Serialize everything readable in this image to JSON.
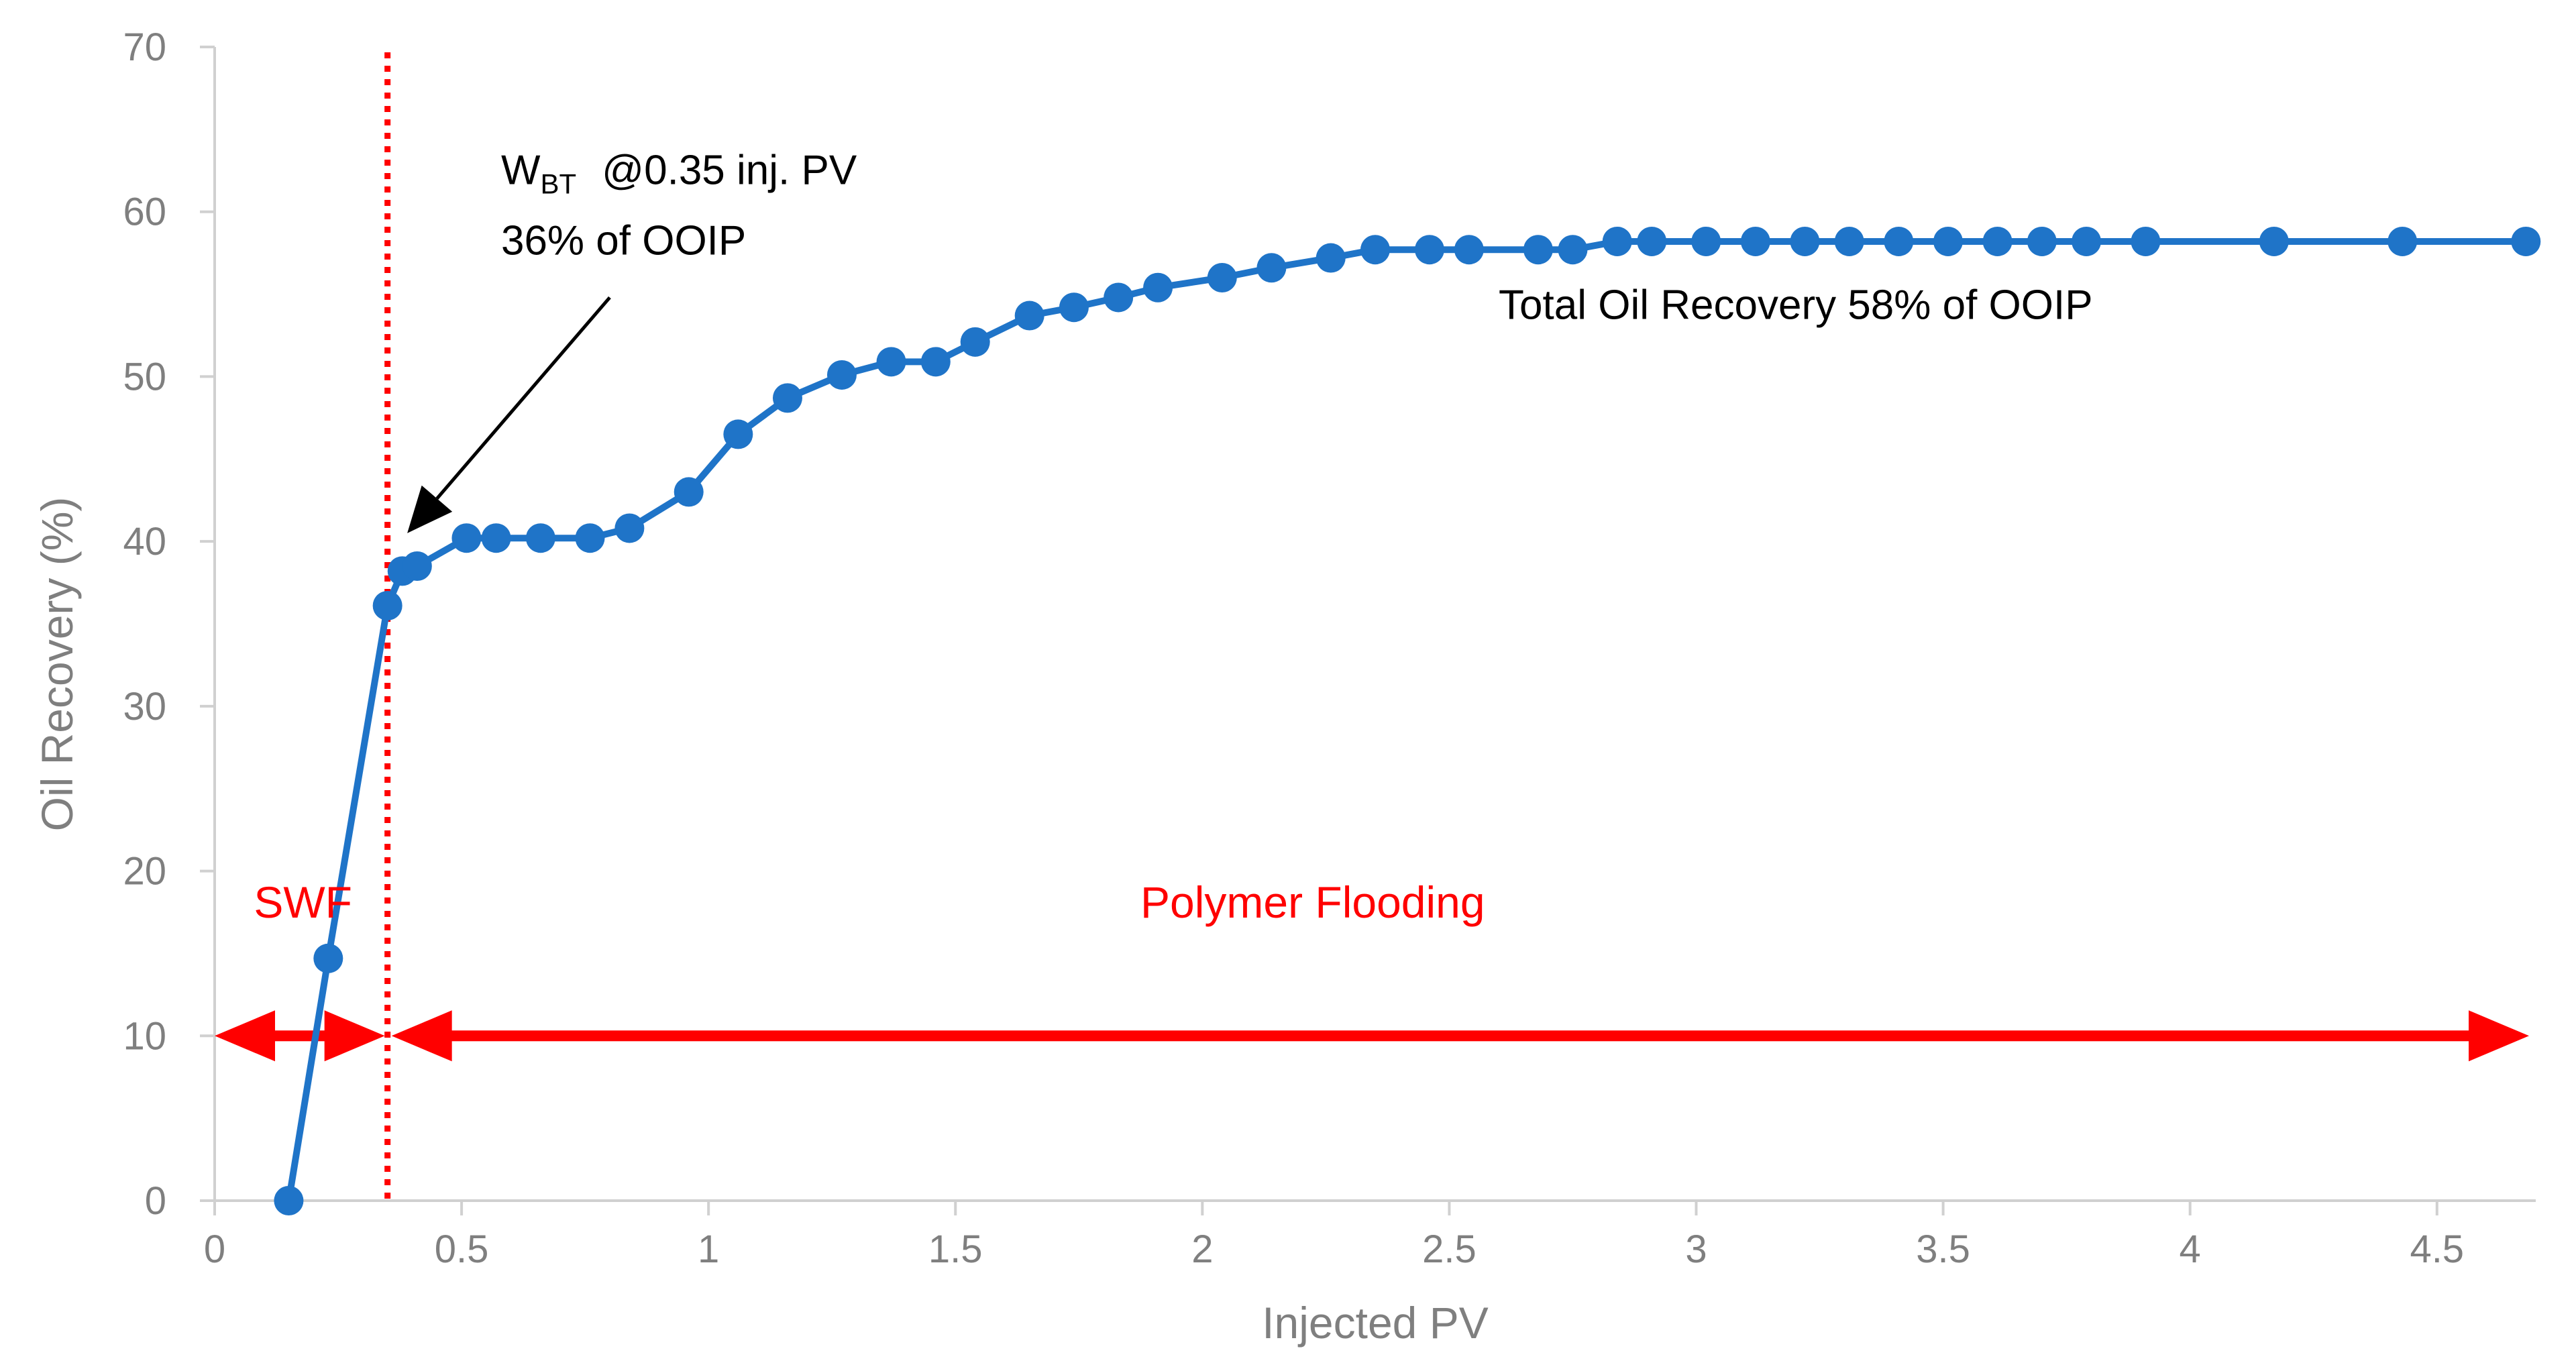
{
  "chart_data": {
    "type": "line",
    "title": "",
    "xlabel": "Injected PV",
    "ylabel": "Oil Recovery (%)",
    "xlim": [
      0,
      4.7
    ],
    "ylim": [
      0,
      70
    ],
    "xticks": [
      0,
      0.5,
      1,
      1.5,
      2,
      2.5,
      3,
      3.5,
      4,
      4.5
    ],
    "xtick_labels": [
      "0",
      "0.5",
      "1",
      "1.5",
      "2",
      "2.5",
      "3",
      "3.5",
      "4",
      "4.5"
    ],
    "yticks": [
      0,
      10,
      20,
      30,
      40,
      50,
      60,
      70
    ],
    "ytick_labels": [
      "0",
      "10",
      "20",
      "30",
      "40",
      "50",
      "60",
      "70"
    ],
    "grid": false,
    "series": [
      {
        "name": "Oil Recovery",
        "color": "#1f74c8",
        "x": [
          0.15,
          0.23,
          0.35,
          0.38,
          0.41,
          0.51,
          0.57,
          0.66,
          0.76,
          0.84,
          0.96,
          1.06,
          1.16,
          1.27,
          1.37,
          1.46,
          1.54,
          1.65,
          1.74,
          1.83,
          1.91,
          2.04,
          2.14,
          2.26,
          2.35,
          2.46,
          2.54,
          2.68,
          2.75,
          2.84,
          2.91,
          3.02,
          3.12,
          3.22,
          3.31,
          3.41,
          3.51,
          3.61,
          3.7,
          3.79,
          3.91,
          4.17,
          4.43,
          4.68
        ],
        "y": [
          0,
          14.7,
          36.1,
          38.2,
          38.5,
          40.2,
          40.2,
          40.2,
          40.2,
          40.8,
          43.0,
          46.5,
          48.7,
          50.1,
          50.9,
          50.9,
          52.1,
          53.7,
          54.2,
          54.8,
          55.4,
          56.0,
          56.6,
          57.2,
          57.7,
          57.7,
          57.7,
          57.7,
          57.7,
          58.2,
          58.2,
          58.2,
          58.2,
          58.2,
          58.2,
          58.2,
          58.2,
          58.2,
          58.2,
          58.2,
          58.2,
          58.2,
          58.2,
          58.2
        ]
      }
    ],
    "reference_lines": [
      {
        "name": "water-breakthrough",
        "orientation": "vertical",
        "x": 0.35,
        "style": "dotted",
        "color": "#ff0000"
      }
    ],
    "range_arrows": [
      {
        "name": "SWF",
        "from": 0,
        "to": 0.35,
        "y": 10,
        "color": "#ff0000"
      },
      {
        "name": "Polymer Flooding",
        "from": 0.35,
        "to": 4.7,
        "y": 10,
        "color": "#ff0000"
      }
    ],
    "annotations": [
      {
        "key": "wbt",
        "main": "W",
        "sub": "BT",
        "rest": "@0.35 inj. PV",
        "line2": "36% of OOIP",
        "x": 0.58,
        "y": 62.5,
        "arrow_from": [
          0.8,
          54.8
        ],
        "arrow_to": [
          0.39,
          40.5
        ]
      },
      {
        "key": "total",
        "text": "Total Oil Recovery 58% of OOIP",
        "x": 2.6,
        "y": 53.5
      },
      {
        "key": "swf",
        "text": "SWF",
        "x": 0.12,
        "y": 17.9,
        "color": "#ff0000"
      },
      {
        "key": "polymer",
        "text": "Polymer Flooding",
        "x": 2.35,
        "y": 17.9,
        "color": "#ff0000"
      }
    ]
  }
}
